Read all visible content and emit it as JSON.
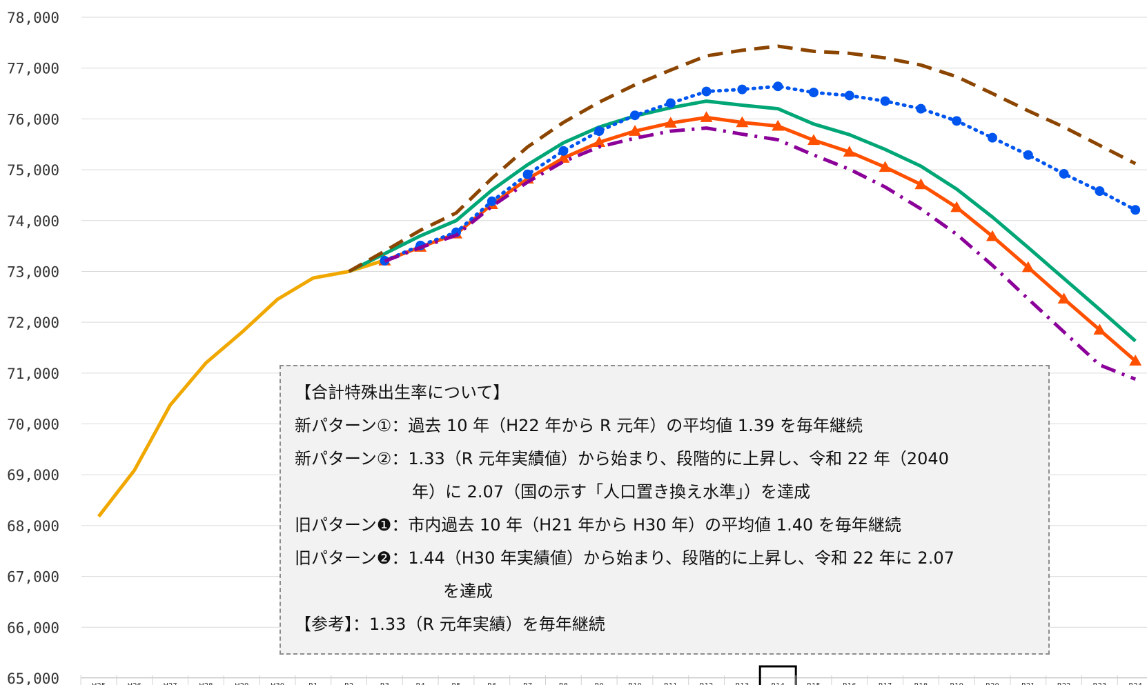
{
  "chart_data": {
    "type": "line",
    "title": "",
    "xlabel": "",
    "ylabel": "",
    "ylim": [
      65000,
      78000
    ],
    "yticks": [
      "65,000",
      "66,000",
      "67,000",
      "68,000",
      "69,000",
      "70,000",
      "71,000",
      "72,000",
      "73,000",
      "74,000",
      "75,000",
      "76,000",
      "77,000",
      "78,000"
    ],
    "categories": [
      "H25",
      "H26",
      "H27",
      "H28",
      "H29",
      "H30",
      "R1",
      "R2",
      "R3",
      "R4",
      "R5",
      "R6",
      "R7",
      "R8",
      "R9",
      "R10",
      "R11",
      "R12",
      "R13",
      "R14",
      "R15",
      "R16",
      "R17",
      "R18",
      "R19",
      "R20",
      "R21",
      "R22",
      "R23",
      "R24"
    ],
    "highlighted_category": "R14",
    "grid": true,
    "series": [
      {
        "key": "actual",
        "color": "#f0a800",
        "style": "solid",
        "marker": "none",
        "values": [
          68180,
          69090,
          70370,
          71200,
          71800,
          72450,
          72870,
          73000,
          73220,
          null,
          null,
          null,
          null,
          null,
          null,
          null,
          null,
          null,
          null,
          null,
          null,
          null,
          null,
          null,
          null,
          null,
          null,
          null,
          null,
          null
        ]
      },
      {
        "key": "new-pattern-1",
        "color": "#00a676",
        "style": "solid",
        "marker": "none",
        "values": [
          null,
          null,
          null,
          null,
          null,
          null,
          null,
          73000,
          73350,
          73700,
          74000,
          74600,
          75100,
          75530,
          75840,
          76060,
          76220,
          76350,
          76270,
          76200,
          75900,
          75690,
          75400,
          75070,
          74620,
          74070,
          73470,
          72860,
          72250,
          71630
        ]
      },
      {
        "key": "new-pattern-2",
        "color": "#ff5000",
        "style": "solid",
        "marker": "triangle",
        "values": [
          null,
          null,
          null,
          null,
          null,
          null,
          null,
          null,
          73210,
          73480,
          73740,
          74320,
          74820,
          75230,
          75540,
          75760,
          75920,
          76030,
          75930,
          75860,
          75580,
          75350,
          75050,
          74710,
          74260,
          73690,
          73080,
          72460,
          71850,
          71240
        ]
      },
      {
        "key": "old-pattern-1",
        "color": "#8b4500",
        "style": "dash",
        "marker": "none",
        "values": [
          null,
          null,
          null,
          null,
          null,
          null,
          null,
          73000,
          73400,
          73810,
          74150,
          74830,
          75450,
          75930,
          76330,
          76670,
          76960,
          77240,
          77350,
          77430,
          77330,
          77290,
          77200,
          77060,
          76830,
          76500,
          76160,
          75840,
          75480,
          75120
        ]
      },
      {
        "key": "old-pattern-2",
        "color": "#0055ee",
        "style": "dot",
        "marker": "circle",
        "values": [
          null,
          null,
          null,
          null,
          null,
          null,
          null,
          null,
          73210,
          73510,
          73770,
          74380,
          74910,
          75370,
          75760,
          76070,
          76310,
          76540,
          76580,
          76640,
          76520,
          76460,
          76350,
          76200,
          75960,
          75630,
          75290,
          74920,
          74580,
          74210
        ]
      },
      {
        "key": "reference",
        "color": "#8a0099",
        "style": "dashdot",
        "marker": "none",
        "values": [
          null,
          null,
          null,
          null,
          null,
          null,
          null,
          null,
          73200,
          73470,
          73710,
          74280,
          74760,
          75160,
          75450,
          75620,
          75760,
          75820,
          75700,
          75590,
          75290,
          75010,
          74660,
          74230,
          73730,
          73120,
          72460,
          71810,
          71160,
          70880
        ]
      }
    ]
  },
  "legend": {
    "title": "【合計特殊出生率について】",
    "line1": "新パターン①：過去 10 年（H22 年から R 元年）の平均値 1.39 を毎年継続",
    "line2a": "新パターン②：1.33（R 元年実績値）から始まり、段階的に上昇し、令和 22 年（2040",
    "line2b": "年）に 2.07（国の示す「人口置き換え水準」）を達成",
    "line3": "旧パターン❶：市内過去 10 年（H21 年から H30 年）の平均値 1.40 を毎年継続",
    "line4a": "旧パターン❷：1.44（H30 年実績値）から始まり、段階的に上昇し、令和 22 年に 2.07",
    "line4b": "を達成",
    "line5": "【参考】：1.33（R 元年実績）を毎年継続"
  }
}
